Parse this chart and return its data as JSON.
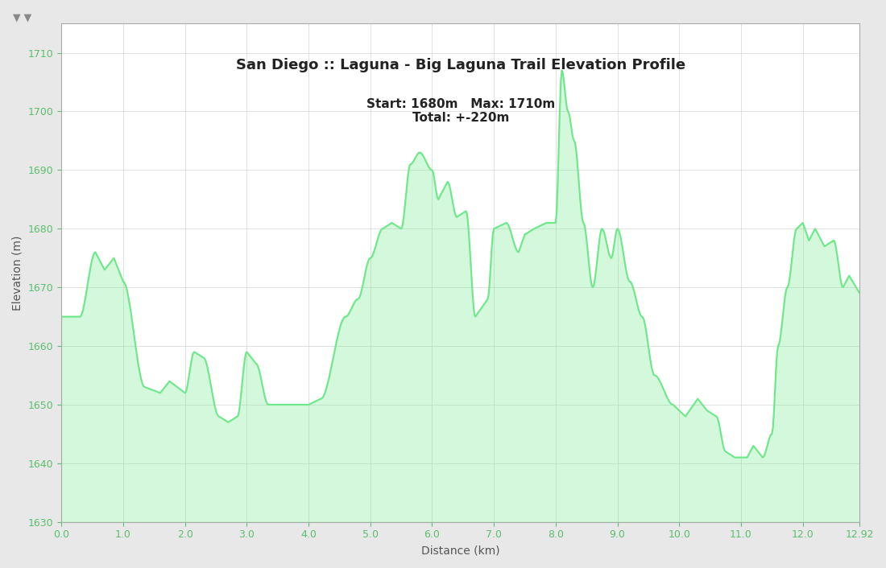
{
  "title": "San Diego :: Laguna - Big Laguna Trail Elevation Profile",
  "subtitle": "Start: 1680m   Max: 1710m\nTotal: +-220m",
  "xlabel": "Distance (km)",
  "ylabel": "Elevation (m)",
  "ylim": [
    1630,
    1715
  ],
  "xlim": [
    0.0,
    12.92
  ],
  "yticks": [
    1630,
    1640,
    1650,
    1660,
    1670,
    1680,
    1690,
    1700,
    1710
  ],
  "xticks": [
    0.0,
    1.0,
    2.0,
    3.0,
    4.0,
    5.0,
    6.0,
    7.0,
    8.0,
    9.0,
    10.0,
    11.0,
    12.0,
    12.92
  ],
  "xtick_labels": [
    "0.0",
    "1.0",
    "2.0",
    "3.0",
    "4.0",
    "5.0",
    "6.0",
    "7.0",
    "8.0",
    "9.0",
    "10.0",
    "11.0",
    "12.0",
    "12.92"
  ],
  "line_color": "#6EE88A",
  "fill_color": "#6EE88A",
  "fill_alpha": 0.3,
  "background_color": "#f5f5f5",
  "plot_bg_color": "#ffffff",
  "grid_color": "#cccccc",
  "tick_color": "#5abf6e",
  "title_fontsize": 13,
  "subtitle_fontsize": 11,
  "axis_label_fontsize": 10,
  "tick_fontsize": 9
}
